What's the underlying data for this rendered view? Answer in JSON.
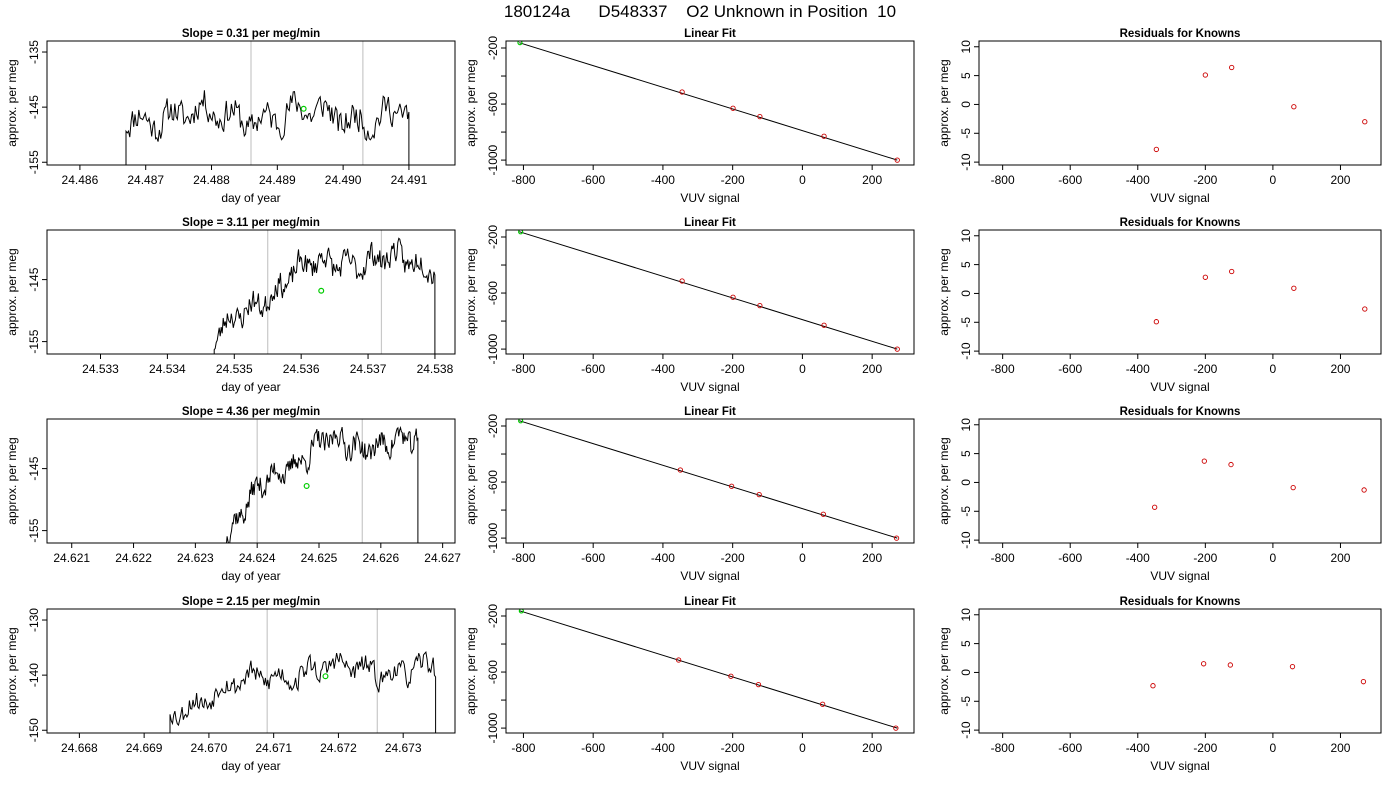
{
  "main_title": "180124a      D548337    O2 Unknown in Position  10",
  "colors": {
    "trace": "#000000",
    "vline": "#c8c8c8",
    "marker": "#00cc00",
    "residual": "#cc0000",
    "fit": "#000000"
  },
  "chart_data": [
    {
      "type": "line",
      "row": 0,
      "col": 0,
      "title": "Slope =  0.31  per meg/min",
      "xlabel": "day of year",
      "ylabel": "approx. per meg",
      "xlim": [
        24.4855,
        24.4917
      ],
      "ylim": [
        -155.5,
        -133
      ],
      "xticks": [
        "24.486",
        "24.487",
        "24.488",
        "24.489",
        "24.490",
        "24.491"
      ],
      "yticks": [
        "-135",
        "-145",
        "-155"
      ],
      "vlines": [
        24.4886,
        24.4903
      ],
      "marker": [
        24.4894,
        -145.3
      ],
      "trace": {
        "x_start": 24.4867,
        "x_end": 24.491,
        "base": -146.5,
        "amplitude": 2.4,
        "seed": 11,
        "drop_start": -160,
        "drop_end": -160
      }
    },
    {
      "type": "scatter",
      "row": 0,
      "col": 1,
      "title": "Linear Fit",
      "xlabel": "VUV signal",
      "ylabel": "approx. per meg",
      "xlim": [
        -850,
        320
      ],
      "ylim": [
        -1035,
        -150
      ],
      "xticks": [
        "-800",
        "-600",
        "-400",
        "-200",
        "0",
        "200"
      ],
      "yticks": [
        "-200",
        "-600",
        "-1000"
      ],
      "fit_line": [
        [
          -812,
          -162
        ],
        [
          272,
          -1000
        ]
      ],
      "known_points": [
        [
          -345,
          -514
        ],
        [
          -199,
          -630
        ],
        [
          -122,
          -690
        ],
        [
          62,
          -830
        ],
        [
          272,
          -1000
        ]
      ],
      "unknown_point": [
        -810,
        -162
      ]
    },
    {
      "type": "scatter",
      "row": 0,
      "col": 2,
      "title": "Residuals for Knowns",
      "xlabel": "VUV signal",
      "ylabel": "approx. per meg",
      "xlim": [
        -870,
        320
      ],
      "ylim": [
        -10.5,
        11
      ],
      "xticks": [
        "-800",
        "-600",
        "-400",
        "-200",
        "0",
        "200"
      ],
      "yticks": [
        "-10",
        "-5",
        "0",
        "5",
        "10"
      ],
      "points": [
        [
          -345,
          -7.8
        ],
        [
          -200,
          5.1
        ],
        [
          -122,
          6.4
        ],
        [
          62,
          -0.4
        ],
        [
          272,
          -3.0
        ]
      ]
    },
    {
      "type": "line",
      "row": 1,
      "col": 0,
      "title": "Slope =  3.11  per meg/min",
      "xlabel": "day of year",
      "ylabel": "approx. per meg",
      "xlim": [
        24.5322,
        24.5383
      ],
      "ylim": [
        -157,
        -137
      ],
      "xticks": [
        "24.533",
        "24.534",
        "24.535",
        "24.536",
        "24.537",
        "24.538"
      ],
      "yticks": [
        "-145",
        "-155"
      ],
      "vlines": [
        24.5355,
        24.5372
      ],
      "marker": [
        24.5363,
        -146.8
      ],
      "trace": {
        "x_start": 24.5347,
        "x_end": 24.538,
        "base_start": -155,
        "base_end": -142,
        "amplitude": 1.8,
        "seed": 23,
        "drop_start": -162,
        "drop_end": -162
      }
    },
    {
      "type": "scatter",
      "row": 1,
      "col": 1,
      "title": "Linear Fit",
      "xlabel": "VUV signal",
      "ylabel": "approx. per meg",
      "xlim": [
        -850,
        320
      ],
      "ylim": [
        -1035,
        -150
      ],
      "xticks": [
        "-800",
        "-600",
        "-400",
        "-200",
        "0",
        "200"
      ],
      "yticks": [
        "-200",
        "-600",
        "-1000"
      ],
      "fit_line": [
        [
          -812,
          -162
        ],
        [
          272,
          -1000
        ]
      ],
      "known_points": [
        [
          -345,
          -514
        ],
        [
          -199,
          -630
        ],
        [
          -122,
          -690
        ],
        [
          62,
          -830
        ],
        [
          272,
          -1000
        ]
      ],
      "unknown_point": [
        -808,
        -163
      ]
    },
    {
      "type": "scatter",
      "row": 1,
      "col": 2,
      "title": "Residuals for Knowns",
      "xlabel": "VUV signal",
      "ylabel": "approx. per meg",
      "xlim": [
        -870,
        320
      ],
      "ylim": [
        -10.5,
        11
      ],
      "xticks": [
        "-800",
        "-600",
        "-400",
        "-200",
        "0",
        "200"
      ],
      "yticks": [
        "-10",
        "-5",
        "0",
        "5",
        "10"
      ],
      "points": [
        [
          -345,
          -4.9
        ],
        [
          -200,
          2.8
        ],
        [
          -122,
          3.8
        ],
        [
          62,
          0.9
        ],
        [
          272,
          -2.7
        ]
      ]
    },
    {
      "type": "line",
      "row": 2,
      "col": 0,
      "title": "Slope =  4.36  per meg/min",
      "xlabel": "day of year",
      "ylabel": "approx. per meg",
      "xlim": [
        24.6206,
        24.6272
      ],
      "ylim": [
        -157,
        -137
      ],
      "xticks": [
        "24.621",
        "24.622",
        "24.623",
        "24.624",
        "24.625",
        "24.626",
        "24.627"
      ],
      "yticks": [
        "-145",
        "-155"
      ],
      "vlines": [
        24.624,
        24.6257
      ],
      "marker": [
        24.6248,
        -147.8
      ],
      "trace": {
        "x_start": 24.6235,
        "x_end": 24.6266,
        "base_start": -155,
        "base_end": -141,
        "amplitude": 1.7,
        "seed": 37,
        "drop_start": -162,
        "drop_end": -162
      }
    },
    {
      "type": "scatter",
      "row": 2,
      "col": 1,
      "title": "Linear Fit",
      "xlabel": "VUV signal",
      "ylabel": "approx. per meg",
      "xlim": [
        -850,
        320
      ],
      "ylim": [
        -1035,
        -150
      ],
      "xticks": [
        "-800",
        "-600",
        "-400",
        "-200",
        "0",
        "200"
      ],
      "yticks": [
        "-200",
        "-600",
        "-1000"
      ],
      "fit_line": [
        [
          -812,
          -162
        ],
        [
          272,
          -1000
        ]
      ],
      "known_points": [
        [
          -350,
          -514
        ],
        [
          -203,
          -630
        ],
        [
          -124,
          -690
        ],
        [
          60,
          -830
        ],
        [
          270,
          -1000
        ]
      ],
      "unknown_point": [
        -808,
        -163
      ]
    },
    {
      "type": "scatter",
      "row": 2,
      "col": 2,
      "title": "Residuals for Knowns",
      "xlabel": "VUV signal",
      "ylabel": "approx. per meg",
      "xlim": [
        -870,
        320
      ],
      "ylim": [
        -10.5,
        11
      ],
      "xticks": [
        "-800",
        "-600",
        "-400",
        "-200",
        "0",
        "200"
      ],
      "yticks": [
        "-10",
        "-5",
        "0",
        "5",
        "10"
      ],
      "points": [
        [
          -350,
          -4.3
        ],
        [
          -203,
          3.7
        ],
        [
          -124,
          3.1
        ],
        [
          60,
          -0.9
        ],
        [
          270,
          -1.3
        ]
      ]
    },
    {
      "type": "line",
      "row": 3,
      "col": 0,
      "title": "Slope =  2.15  per meg/min",
      "xlabel": "day of year",
      "ylabel": "approx. per meg",
      "xlim": [
        24.6675,
        24.6738
      ],
      "ylim": [
        -150.5,
        -128
      ],
      "xticks": [
        "24.668",
        "24.669",
        "24.670",
        "24.671",
        "24.672",
        "24.673"
      ],
      "yticks": [
        "-130",
        "-140",
        "-150"
      ],
      "vlines": [
        24.6709,
        24.6726
      ],
      "marker": [
        24.6718,
        -140.2
      ],
      "trace": {
        "x_start": 24.6694,
        "x_end": 24.6735,
        "base_start": -146.5,
        "base_end": -139,
        "amplitude": 1.8,
        "seed": 53,
        "drop_start": -156,
        "drop_end": -156
      }
    },
    {
      "type": "scatter",
      "row": 3,
      "col": 1,
      "title": "Linear Fit",
      "xlabel": "VUV signal",
      "ylabel": "approx. per meg",
      "xlim": [
        -850,
        320
      ],
      "ylim": [
        -1035,
        -150
      ],
      "xticks": [
        "-800",
        "-600",
        "-400",
        "-200",
        "0",
        "200"
      ],
      "yticks": [
        "-200",
        "-600",
        "-1000"
      ],
      "fit_line": [
        [
          -812,
          -162
        ],
        [
          272,
          -1000
        ]
      ],
      "known_points": [
        [
          -355,
          -514
        ],
        [
          -205,
          -630
        ],
        [
          -126,
          -690
        ],
        [
          58,
          -830
        ],
        [
          268,
          -1000
        ]
      ],
      "unknown_point": [
        -806,
        -164
      ]
    },
    {
      "type": "scatter",
      "row": 3,
      "col": 2,
      "title": "Residuals for Knowns",
      "xlabel": "VUV signal",
      "ylabel": "approx. per meg",
      "xlim": [
        -870,
        320
      ],
      "ylim": [
        -10.5,
        11
      ],
      "xticks": [
        "-800",
        "-600",
        "-400",
        "-200",
        "0",
        "200"
      ],
      "yticks": [
        "-10",
        "-5",
        "0",
        "5",
        "10"
      ],
      "points": [
        [
          -355,
          -2.3
        ],
        [
          -205,
          1.5
        ],
        [
          -126,
          1.3
        ],
        [
          58,
          1.0
        ],
        [
          268,
          -1.6
        ]
      ]
    }
  ]
}
